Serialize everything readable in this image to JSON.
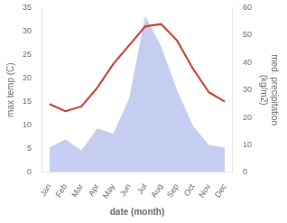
{
  "chart_data": {
    "type": "line",
    "categories": [
      "Jan",
      "Feb",
      "Mar",
      "Apr",
      "May",
      "Jun",
      "Jul",
      "Aug",
      "Sep",
      "Oct",
      "Nov",
      "Dec"
    ],
    "series": [
      {
        "type": "area",
        "color": "#c5cef0",
        "values": [
          9,
          12,
          8,
          16,
          14,
          27,
          57,
          46,
          30,
          17,
          10,
          9
        ],
        "axis": "y2"
      },
      {
        "type": "line",
        "color": "#c0392b",
        "values": [
          14.5,
          13.0,
          14.0,
          18.0,
          23.0,
          27.0,
          31.0,
          31.5,
          28.0,
          22.0,
          17.0,
          15.0
        ]
      }
    ],
    "xlabel": "date (month)",
    "ylabel": "max temp (C)",
    "y2label": "med. precipitation\n(kg/m2)",
    "ylim": [
      0,
      35
    ],
    "yticks": [
      0,
      5,
      10,
      15,
      20,
      25,
      30,
      35
    ],
    "y2lim": [
      0,
      60
    ],
    "y2ticks": [
      0,
      10,
      20,
      30,
      40,
      50,
      60
    ],
    "grid": false
  }
}
